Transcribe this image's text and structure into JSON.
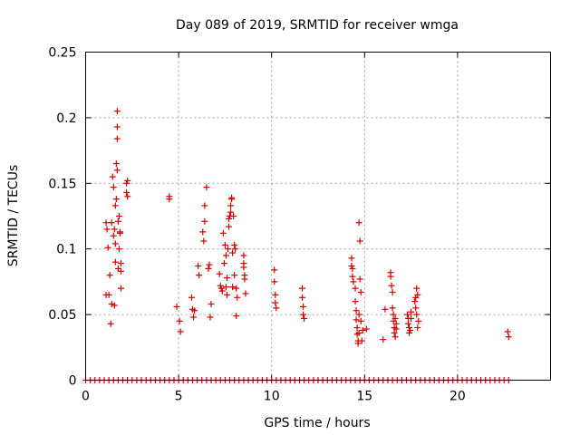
{
  "chart_data": {
    "type": "scatter",
    "title": "Day 089 of 2019, SRMTID for receiver wmga",
    "xlabel": "GPS time / hours",
    "ylabel": "SRMTID / TECUs",
    "xlim": [
      0,
      25
    ],
    "ylim": [
      0,
      0.25
    ],
    "grid": true,
    "xticks": [
      0,
      5,
      10,
      15,
      20
    ],
    "xtick_labels": [
      "0",
      "5",
      "10",
      "15",
      "20"
    ],
    "yticks": [
      0,
      0.05,
      0.1,
      0.15,
      0.2,
      0.25
    ],
    "ytick_labels": [
      "0",
      "0.05",
      "0.1",
      "0.15",
      "0.2",
      "0.25"
    ],
    "marker": "+",
    "color": "#d40000",
    "series": [
      {
        "name": "SRMTID",
        "x": [
          1.1,
          1.1,
          1.15,
          1.2,
          1.25,
          1.3,
          1.35,
          1.4,
          1.4,
          1.45,
          1.5,
          1.5,
          1.55,
          1.55,
          1.6,
          1.6,
          1.6,
          1.65,
          1.65,
          1.7,
          1.7,
          1.7,
          1.7,
          1.75,
          1.75,
          1.8,
          1.8,
          1.85,
          1.85,
          1.9,
          1.9,
          1.9,
          2.2,
          2.2,
          2.25,
          2.25,
          4.5,
          4.5,
          4.9,
          5.05,
          5.1,
          5.7,
          5.75,
          5.8,
          5.85,
          6.05,
          6.1,
          6.3,
          6.35,
          6.4,
          6.4,
          6.5,
          6.6,
          6.65,
          6.7,
          6.75,
          7.2,
          7.25,
          7.3,
          7.35,
          7.4,
          7.45,
          7.5,
          7.55,
          7.55,
          7.6,
          7.6,
          7.65,
          7.7,
          7.7,
          7.75,
          7.8,
          7.8,
          7.85,
          7.85,
          7.9,
          7.9,
          7.95,
          8.0,
          8.0,
          8.05,
          8.1,
          8.1,
          8.15,
          8.5,
          8.5,
          8.5,
          8.55,
          8.55,
          8.6,
          10.15,
          10.15,
          10.2,
          10.2,
          10.25,
          11.65,
          11.65,
          11.7,
          11.7,
          11.75,
          14.3,
          14.3,
          14.35,
          14.35,
          14.4,
          14.5,
          14.5,
          14.55,
          14.55,
          14.6,
          14.6,
          14.65,
          14.65,
          14.7,
          14.7,
          14.7,
          14.75,
          14.75,
          14.8,
          14.8,
          14.85,
          14.9,
          15.1,
          16.0,
          16.1,
          16.4,
          16.4,
          16.45,
          16.5,
          16.5,
          16.55,
          16.55,
          16.6,
          16.6,
          16.65,
          16.65,
          16.7,
          16.7,
          17.3,
          17.35,
          17.35,
          17.4,
          17.4,
          17.45,
          17.5,
          17.5,
          17.7,
          17.75,
          17.75,
          17.8,
          17.8,
          17.85,
          17.85,
          17.9,
          22.7,
          22.75
        ],
        "values": [
          0.12,
          0.065,
          0.115,
          0.101,
          0.065,
          0.08,
          0.043,
          0.058,
          0.12,
          0.155,
          0.11,
          0.147,
          0.115,
          0.057,
          0.133,
          0.09,
          0.104,
          0.165,
          0.138,
          0.205,
          0.193,
          0.184,
          0.16,
          0.121,
          0.085,
          0.125,
          0.1,
          0.112,
          0.113,
          0.089,
          0.083,
          0.07,
          0.15,
          0.143,
          0.152,
          0.14,
          0.14,
          0.138,
          0.056,
          0.045,
          0.037,
          0.063,
          0.054,
          0.048,
          0.053,
          0.087,
          0.08,
          0.113,
          0.106,
          0.121,
          0.133,
          0.147,
          0.085,
          0.088,
          0.048,
          0.058,
          0.081,
          0.072,
          0.07,
          0.068,
          0.112,
          0.089,
          0.103,
          0.095,
          0.071,
          0.078,
          0.065,
          0.1,
          0.117,
          0.123,
          0.125,
          0.128,
          0.133,
          0.139,
          0.138,
          0.097,
          0.071,
          0.125,
          0.08,
          0.103,
          0.1,
          0.07,
          0.049,
          0.063,
          0.095,
          0.089,
          0.086,
          0.08,
          0.077,
          0.066,
          0.084,
          0.075,
          0.065,
          0.059,
          0.055,
          0.07,
          0.063,
          0.056,
          0.05,
          0.047,
          0.093,
          0.087,
          0.085,
          0.079,
          0.075,
          0.07,
          0.06,
          0.053,
          0.046,
          0.04,
          0.035,
          0.03,
          0.028,
          0.036,
          0.05,
          0.12,
          0.106,
          0.077,
          0.067,
          0.045,
          0.03,
          0.038,
          0.039,
          0.031,
          0.054,
          0.082,
          0.079,
          0.072,
          0.067,
          0.055,
          0.05,
          0.045,
          0.04,
          0.036,
          0.033,
          0.047,
          0.043,
          0.039,
          0.05,
          0.047,
          0.043,
          0.04,
          0.036,
          0.038,
          0.052,
          0.047,
          0.06,
          0.063,
          0.055,
          0.05,
          0.07,
          0.065,
          0.04,
          0.045,
          0.037,
          0.033
        ],
        "zero_line_points": {
          "x_start": 0,
          "x_end": 22.9,
          "step": 0.25,
          "value": 0
        }
      }
    ]
  }
}
